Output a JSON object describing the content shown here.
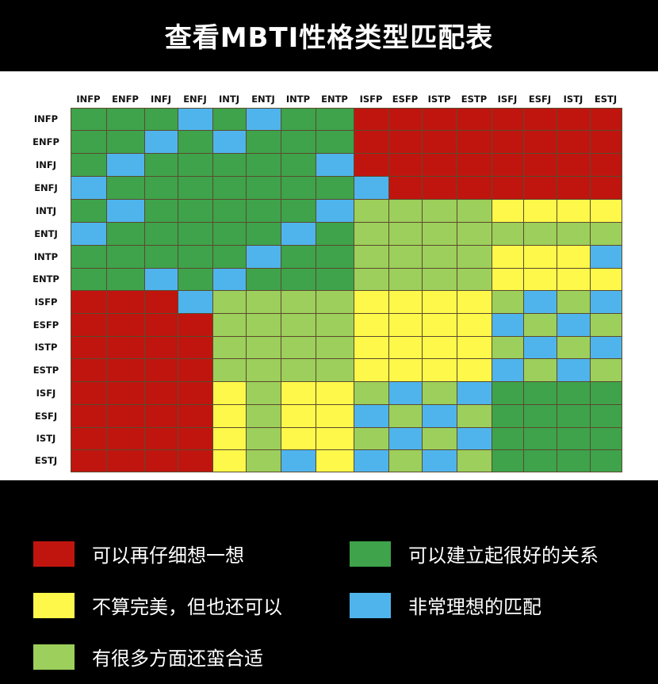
{
  "title": "查看MBTI性格类型匹配表",
  "types": [
    "INFP",
    "ENFP",
    "INFJ",
    "ENFJ",
    "INTJ",
    "ENTJ",
    "INTP",
    "ENTP",
    "ISFP",
    "ESFP",
    "ISTP",
    "ESTP",
    "ISFJ",
    "ESFJ",
    "ISTJ",
    "ESTJ"
  ],
  "colors": {
    "R": "#c0150f",
    "G": "#3ea34b",
    "B": "#4fb4ec",
    "Y": "#fdf84a",
    "L": "#9ccf5b"
  },
  "legend": [
    {
      "key": "R",
      "label": "可以再仔细想一想"
    },
    {
      "key": "G",
      "label": "可以建立起很好的关系"
    },
    {
      "key": "Y",
      "label": "不算完美，但也还可以"
    },
    {
      "key": "B",
      "label": "非常理想的匹配"
    },
    {
      "key": "L",
      "label": "有很多方面还蛮合适"
    }
  ],
  "chart_data": {
    "type": "heatmap",
    "title": "查看MBTI性格类型匹配表",
    "rows": [
      "INFP",
      "ENFP",
      "INFJ",
      "ENFJ",
      "INTJ",
      "ENTJ",
      "INTP",
      "ENTP",
      "ISFP",
      "ESFP",
      "ISTP",
      "ESTP",
      "ISFJ",
      "ESFJ",
      "ISTJ",
      "ESTJ"
    ],
    "columns": [
      "INFP",
      "ENFP",
      "INFJ",
      "ENFJ",
      "INTJ",
      "ENTJ",
      "INTP",
      "ENTP",
      "ISFP",
      "ESFP",
      "ISTP",
      "ESTP",
      "ISFJ",
      "ESFJ",
      "ISTJ",
      "ESTJ"
    ],
    "matrix": [
      "GGGBGBGGRRRRRRRR",
      "GGBGBGGGRRRRRRRR",
      "GBGGGGGBRRRRRRRR",
      "BGGGGGGGBRRRRRRR",
      "GBGGGGGBLLLLYYYY",
      "BGGGGGBGLLLLLLLL",
      "GGGGGBGGLLLLYYYB",
      "GGBGBGGGLLLLYYYY",
      "RRRBLLLLYYYYLBLB",
      "RRRRLLLLYYYYBLBL",
      "RRRRLLLLYYYYLBLB",
      "RRRRLLLLYYYYBLBL",
      "RRRRYLYYLBLBGGGG",
      "RRRRYLYYBLBLGGGG",
      "RRRRYLYYLBLBGGGG",
      "RRRRYLBYBLBLGGGG"
    ],
    "legend": {
      "R": "可以再仔细想一想",
      "G": "可以建立起很好的关系",
      "Y": "不算完美，但也还可以",
      "B": "非常理想的匹配",
      "L": "有很多方面还蛮合适"
    }
  }
}
